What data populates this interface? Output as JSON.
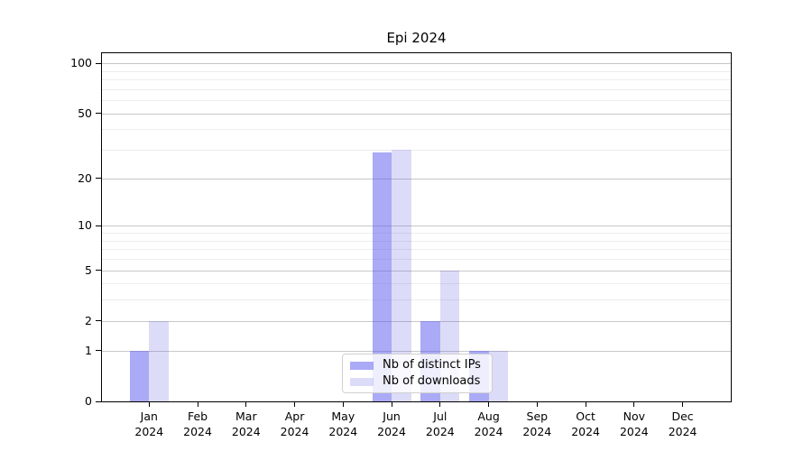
{
  "chart_data": {
    "type": "bar",
    "title": "Epi 2024",
    "x_tick_months": [
      "Jan",
      "Feb",
      "Mar",
      "Apr",
      "May",
      "Jun",
      "Jul",
      "Aug",
      "Sep",
      "Oct",
      "Nov",
      "Dec"
    ],
    "x_tick_year": "2024",
    "series": [
      {
        "name": "Nb of distinct IPs",
        "color_rgba": "rgba(85,85,238,0.5)",
        "color_hex_over_white": "#aaaaf6",
        "values": [
          1,
          0,
          0,
          0,
          0,
          29,
          2,
          1,
          0,
          0,
          0,
          0
        ]
      },
      {
        "name": "Nb of downloads",
        "color_rgba": "rgba(79,79,219,0.2)",
        "color_hex_over_white": "#dcdcf8",
        "values": [
          2,
          0,
          0,
          0,
          0,
          30,
          5,
          1,
          0,
          0,
          0,
          0
        ]
      }
    ],
    "y_scale": "log1p",
    "y_major_ticks": [
      0,
      1,
      2,
      5,
      10,
      20,
      50,
      100
    ],
    "y_minor_ticks": [
      3,
      4,
      6,
      7,
      8,
      9,
      30,
      40,
      60,
      70,
      80,
      90
    ],
    "y_top_value": 115,
    "ylim": [
      0,
      115
    ],
    "grid": true,
    "gridline_major_color": "#c8c8c8",
    "gridline_minor_color": "#ededed",
    "legend_position": "lower center inside plot",
    "xlabel": "",
    "ylabel": ""
  }
}
